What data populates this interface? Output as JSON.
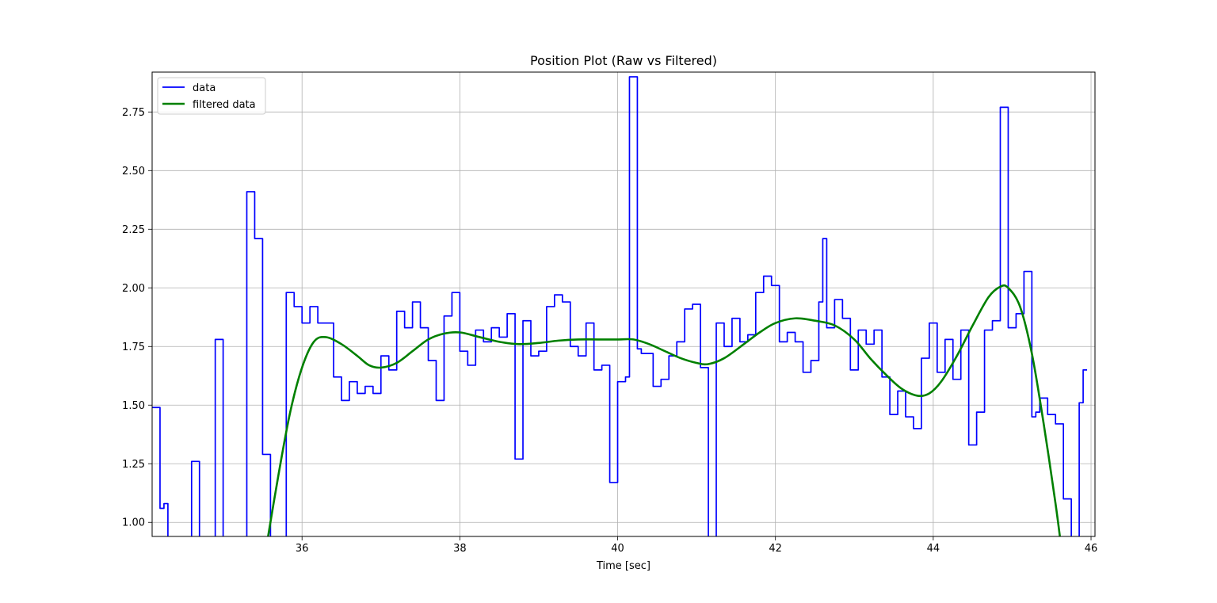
{
  "chart_data": {
    "type": "line",
    "title": "Position Plot (Raw vs Filtered)",
    "xlabel": "Time [sec]",
    "ylabel": "",
    "xlim": [
      34.1,
      46.05
    ],
    "ylim": [
      0.94,
      2.92
    ],
    "xticks": [
      36,
      38,
      40,
      42,
      44,
      46
    ],
    "xtick_labels": [
      "36",
      "38",
      "40",
      "42",
      "44",
      "46"
    ],
    "yticks": [
      1.0,
      1.25,
      1.5,
      1.75,
      2.0,
      2.25,
      2.5,
      2.75
    ],
    "ytick_labels": [
      "1.00",
      "1.25",
      "1.50",
      "1.75",
      "2.00",
      "2.25",
      "2.50",
      "2.75"
    ],
    "grid": true,
    "legend_position": "top-left",
    "colors": {
      "data": "#0000ff",
      "filtered": "#008000",
      "grid": "#b0b0b0"
    },
    "series": [
      {
        "name": "data",
        "style": "steps-post",
        "points": [
          [
            34.1,
            1.49
          ],
          [
            34.2,
            1.06
          ],
          [
            34.25,
            1.08
          ],
          [
            34.3,
            0.7
          ],
          [
            34.6,
            1.26
          ],
          [
            34.7,
            0.7
          ],
          [
            34.9,
            1.78
          ],
          [
            35.0,
            0.7
          ],
          [
            35.3,
            2.41
          ],
          [
            35.4,
            2.21
          ],
          [
            35.5,
            1.29
          ],
          [
            35.6,
            0.7
          ],
          [
            35.8,
            1.98
          ],
          [
            35.9,
            1.92
          ],
          [
            36.0,
            1.85
          ],
          [
            36.1,
            1.92
          ],
          [
            36.2,
            1.85
          ],
          [
            36.4,
            1.62
          ],
          [
            36.5,
            1.52
          ],
          [
            36.6,
            1.6
          ],
          [
            36.7,
            1.55
          ],
          [
            36.8,
            1.58
          ],
          [
            36.9,
            1.55
          ],
          [
            37.0,
            1.71
          ],
          [
            37.1,
            1.65
          ],
          [
            37.2,
            1.9
          ],
          [
            37.3,
            1.83
          ],
          [
            37.4,
            1.94
          ],
          [
            37.5,
            1.83
          ],
          [
            37.6,
            1.69
          ],
          [
            37.7,
            1.52
          ],
          [
            37.8,
            1.88
          ],
          [
            37.9,
            1.98
          ],
          [
            38.0,
            1.73
          ],
          [
            38.1,
            1.67
          ],
          [
            38.2,
            1.82
          ],
          [
            38.3,
            1.77
          ],
          [
            38.4,
            1.83
          ],
          [
            38.5,
            1.79
          ],
          [
            38.6,
            1.89
          ],
          [
            38.7,
            1.27
          ],
          [
            38.8,
            1.86
          ],
          [
            38.9,
            1.71
          ],
          [
            39.0,
            1.73
          ],
          [
            39.1,
            1.92
          ],
          [
            39.2,
            1.97
          ],
          [
            39.3,
            1.94
          ],
          [
            39.4,
            1.75
          ],
          [
            39.5,
            1.71
          ],
          [
            39.6,
            1.85
          ],
          [
            39.7,
            1.65
          ],
          [
            39.8,
            1.67
          ],
          [
            39.9,
            1.17
          ],
          [
            40.0,
            1.6
          ],
          [
            40.1,
            1.62
          ],
          [
            40.15,
            2.9
          ],
          [
            40.25,
            1.74
          ],
          [
            40.3,
            1.72
          ],
          [
            40.45,
            1.58
          ],
          [
            40.55,
            1.61
          ],
          [
            40.65,
            1.71
          ],
          [
            40.75,
            1.77
          ],
          [
            40.85,
            1.91
          ],
          [
            40.95,
            1.93
          ],
          [
            41.05,
            1.66
          ],
          [
            41.15,
            0.7
          ],
          [
            41.25,
            1.85
          ],
          [
            41.35,
            1.75
          ],
          [
            41.45,
            1.87
          ],
          [
            41.55,
            1.77
          ],
          [
            41.65,
            1.8
          ],
          [
            41.75,
            1.98
          ],
          [
            41.85,
            2.05
          ],
          [
            41.95,
            2.01
          ],
          [
            42.05,
            1.77
          ],
          [
            42.15,
            1.81
          ],
          [
            42.25,
            1.77
          ],
          [
            42.35,
            1.64
          ],
          [
            42.45,
            1.69
          ],
          [
            42.55,
            1.94
          ],
          [
            42.6,
            2.21
          ],
          [
            42.65,
            1.83
          ],
          [
            42.75,
            1.95
          ],
          [
            42.85,
            1.87
          ],
          [
            42.95,
            1.65
          ],
          [
            43.05,
            1.82
          ],
          [
            43.15,
            1.76
          ],
          [
            43.25,
            1.82
          ],
          [
            43.35,
            1.62
          ],
          [
            43.45,
            1.46
          ],
          [
            43.55,
            1.56
          ],
          [
            43.65,
            1.45
          ],
          [
            43.75,
            1.4
          ],
          [
            43.85,
            1.7
          ],
          [
            43.95,
            1.85
          ],
          [
            44.05,
            1.64
          ],
          [
            44.15,
            1.78
          ],
          [
            44.25,
            1.61
          ],
          [
            44.35,
            1.82
          ],
          [
            44.45,
            1.33
          ],
          [
            44.55,
            1.47
          ],
          [
            44.65,
            1.82
          ],
          [
            44.75,
            1.86
          ],
          [
            44.85,
            2.77
          ],
          [
            44.95,
            1.83
          ],
          [
            45.05,
            1.89
          ],
          [
            45.15,
            2.07
          ],
          [
            45.25,
            1.45
          ],
          [
            45.3,
            1.47
          ],
          [
            45.35,
            1.53
          ],
          [
            45.45,
            1.46
          ],
          [
            45.55,
            1.42
          ],
          [
            45.65,
            1.1
          ],
          [
            45.75,
            0.7
          ],
          [
            45.85,
            1.51
          ],
          [
            45.9,
            1.65
          ],
          [
            45.95,
            1.65
          ]
        ]
      },
      {
        "name": "filtered data",
        "style": "smooth",
        "points": [
          [
            35.55,
            0.9
          ],
          [
            35.7,
            1.2
          ],
          [
            35.85,
            1.47
          ],
          [
            36.0,
            1.66
          ],
          [
            36.15,
            1.77
          ],
          [
            36.3,
            1.79
          ],
          [
            36.5,
            1.76
          ],
          [
            36.7,
            1.71
          ],
          [
            36.85,
            1.67
          ],
          [
            37.0,
            1.66
          ],
          [
            37.2,
            1.68
          ],
          [
            37.4,
            1.73
          ],
          [
            37.6,
            1.78
          ],
          [
            37.8,
            1.805
          ],
          [
            38.0,
            1.81
          ],
          [
            38.25,
            1.79
          ],
          [
            38.5,
            1.77
          ],
          [
            38.75,
            1.76
          ],
          [
            39.0,
            1.765
          ],
          [
            39.25,
            1.775
          ],
          [
            39.5,
            1.78
          ],
          [
            39.75,
            1.78
          ],
          [
            40.0,
            1.78
          ],
          [
            40.2,
            1.78
          ],
          [
            40.4,
            1.76
          ],
          [
            40.6,
            1.73
          ],
          [
            40.8,
            1.7
          ],
          [
            41.0,
            1.68
          ],
          [
            41.15,
            1.675
          ],
          [
            41.35,
            1.7
          ],
          [
            41.6,
            1.76
          ],
          [
            41.8,
            1.81
          ],
          [
            42.0,
            1.85
          ],
          [
            42.25,
            1.87
          ],
          [
            42.5,
            1.86
          ],
          [
            42.75,
            1.84
          ],
          [
            43.0,
            1.78
          ],
          [
            43.2,
            1.7
          ],
          [
            43.4,
            1.63
          ],
          [
            43.6,
            1.57
          ],
          [
            43.8,
            1.54
          ],
          [
            43.95,
            1.55
          ],
          [
            44.1,
            1.6
          ],
          [
            44.3,
            1.71
          ],
          [
            44.5,
            1.84
          ],
          [
            44.7,
            1.96
          ],
          [
            44.85,
            2.005
          ],
          [
            44.95,
            2.0
          ],
          [
            45.1,
            1.92
          ],
          [
            45.25,
            1.72
          ],
          [
            45.4,
            1.42
          ],
          [
            45.55,
            1.08
          ],
          [
            45.62,
            0.9
          ]
        ]
      }
    ]
  }
}
